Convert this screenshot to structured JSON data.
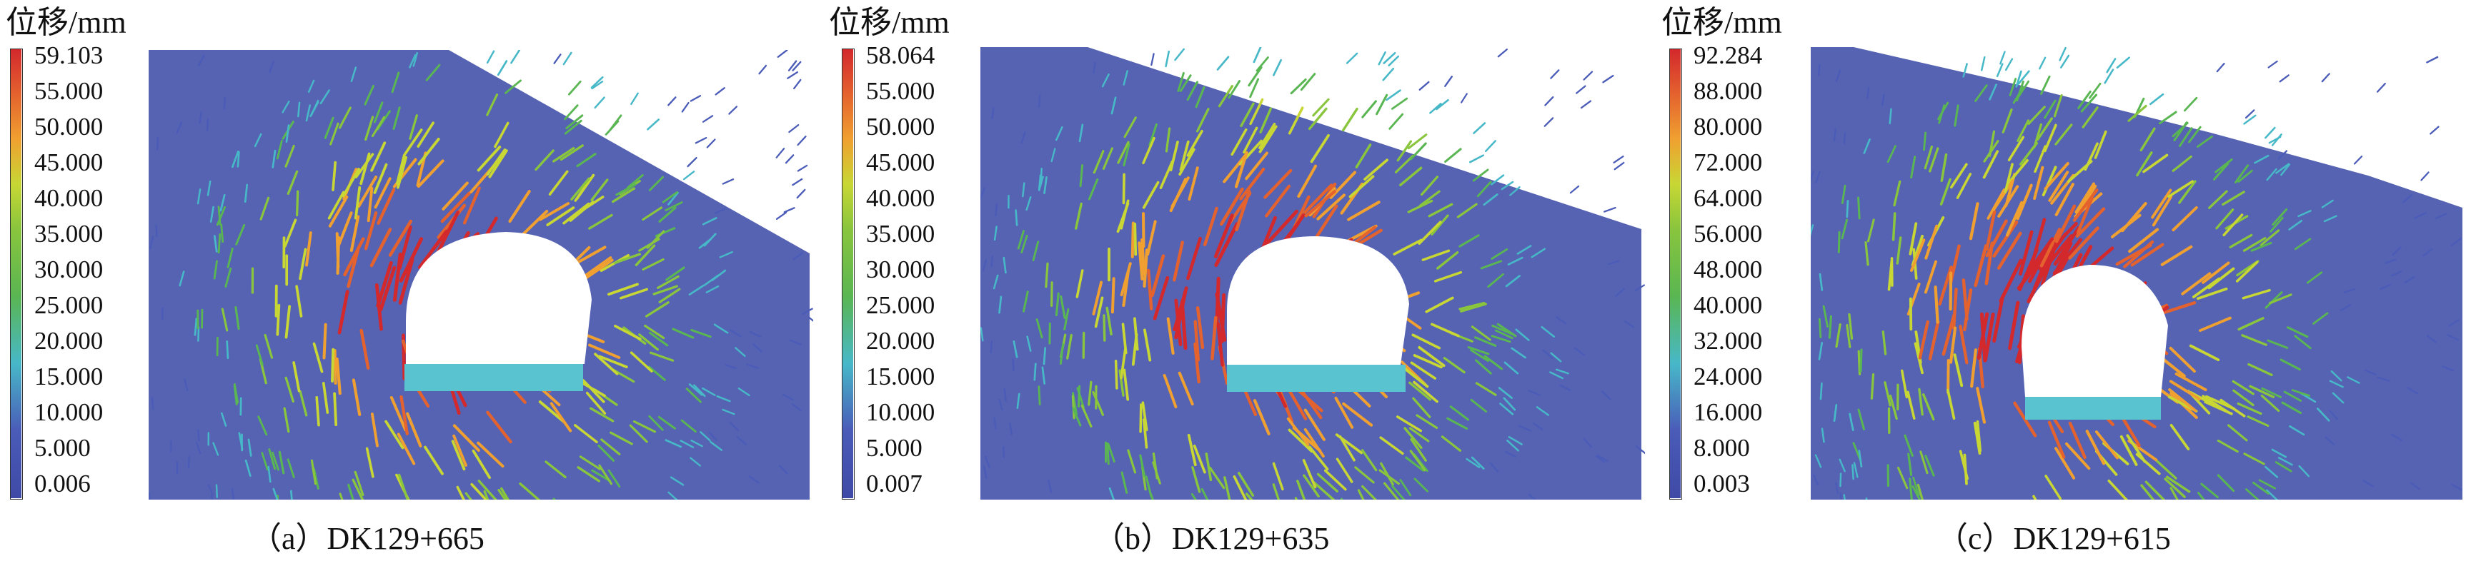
{
  "colors": {
    "background_field": "#5663b2",
    "cavity": "#ffffff",
    "floor_cyan": "#59c3cf",
    "cbar_stops": [
      "#3f4aa6",
      "#4a5bb8",
      "#47b8c8",
      "#5ab652",
      "#89c53d",
      "#c8d734",
      "#f0a030",
      "#e4622e",
      "#d3282c"
    ]
  },
  "panels": [
    {
      "id": "a",
      "legend_title": "位移/mm",
      "ticks": [
        "59.103",
        "55.000",
        "50.000",
        "45.000",
        "40.000",
        "35.000",
        "30.000",
        "25.000",
        "20.000",
        "15.000",
        "10.000",
        "5.000",
        "0.006"
      ],
      "caption": "（a）DK129+665"
    },
    {
      "id": "b",
      "legend_title": "位移/mm",
      "ticks": [
        "58.064",
        "55.000",
        "50.000",
        "45.000",
        "40.000",
        "35.000",
        "30.000",
        "25.000",
        "20.000",
        "15.000",
        "10.000",
        "5.000",
        "0.007"
      ],
      "caption": "（b）DK129+635"
    },
    {
      "id": "c",
      "legend_title": "位移/mm",
      "ticks": [
        "92.284",
        "88.000",
        "80.000",
        "72.000",
        "64.000",
        "56.000",
        "48.000",
        "40.000",
        "32.000",
        "24.000",
        "16.000",
        "8.000",
        "0.003"
      ],
      "caption": "（c）DK129+615"
    }
  ]
}
